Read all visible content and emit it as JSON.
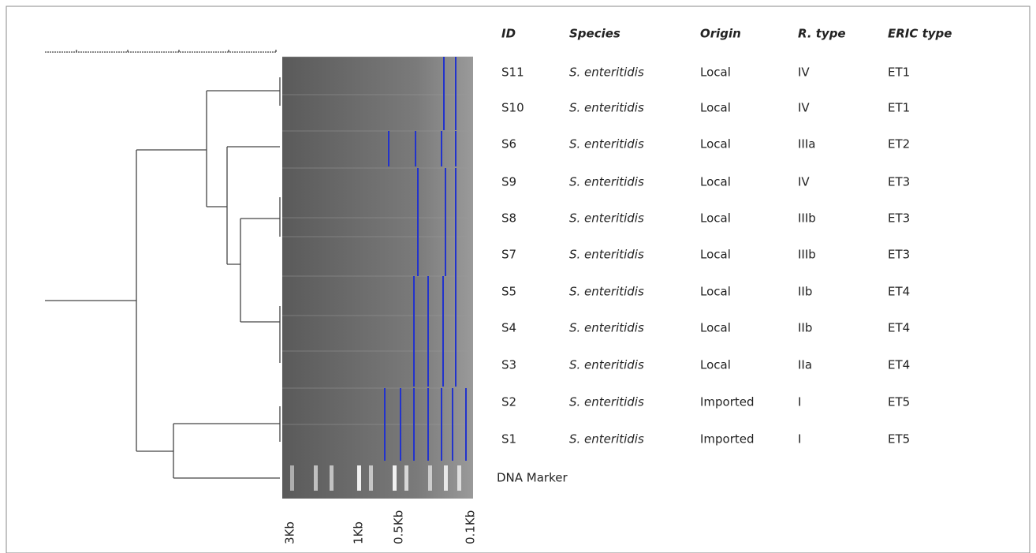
{
  "table": {
    "header": [
      "ID",
      "Species",
      "Origin",
      "R. type",
      "ERIC  type"
    ],
    "rows": [
      [
        "S11",
        "S. enteritidis",
        "Local",
        "IV",
        "ET1"
      ],
      [
        "S10",
        "S. enteritidis",
        "Local",
        "IV",
        "ET1"
      ],
      [
        "S6",
        "S. enteritidis",
        "Local",
        "IIIa",
        "ET2"
      ],
      [
        "S9",
        "S. enteritidis",
        "Local",
        "IV",
        "ET3"
      ],
      [
        "S8",
        "S. enteritidis",
        "Local",
        "IIIb",
        "ET3"
      ],
      [
        "S7",
        "S. enteritidis",
        "Local",
        "IIIb",
        "ET3"
      ],
      [
        "S5",
        "S. enteritidis",
        "Local",
        "IIb",
        "ET4"
      ],
      [
        "S4",
        "S. enteritidis",
        "Local",
        "IIb",
        "ET4"
      ],
      [
        "S3",
        "S. enteritidis",
        "Local",
        "IIa",
        "ET4"
      ],
      [
        "S2",
        "S. enteritidis",
        "Imported",
        "I",
        "ET5"
      ],
      [
        "S1",
        "S. enteritidis",
        "Imported",
        "I",
        "ET5"
      ]
    ]
  },
  "marker_label": "DNA Marker",
  "size_labels": [
    "3Kb",
    "1Kb",
    "0.5Kb",
    "0.1Kb"
  ]
}
